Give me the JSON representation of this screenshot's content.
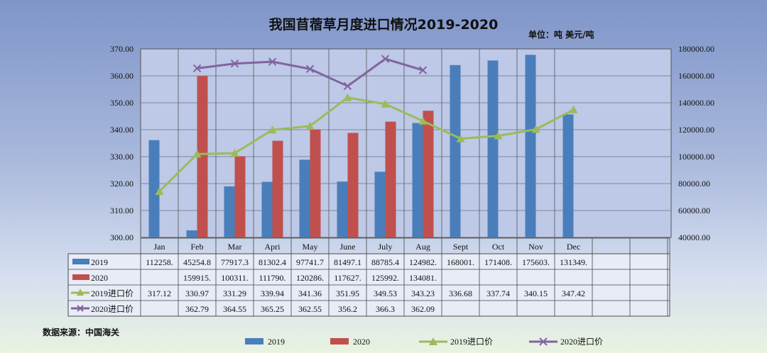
{
  "title": "我国苜蓿草月度进口情况2019-2020",
  "unit_label": "单位：吨  美元/吨",
  "source_label": "数据来源：中国海关",
  "colors": {
    "s2019": "#4a7ebb",
    "s2020": "#c0504d",
    "p2019": "#9bbb59",
    "p2020": "#8064a2"
  },
  "chart_data": {
    "type": "bar",
    "categories": [
      "Jan",
      "Feb",
      "Mar",
      "Apri",
      "May",
      "June",
      "July",
      "Aug",
      "Sept",
      "Oct",
      "Nov",
      "Dec"
    ],
    "left_axis": {
      "ylim": [
        300,
        370
      ],
      "ticks": [
        "300.00",
        "310.00",
        "320.00",
        "330.00",
        "340.00",
        "350.00",
        "360.00",
        "370.00"
      ]
    },
    "right_axis": {
      "ylim": [
        40000,
        180000
      ],
      "ticks": [
        "40000.00",
        "60000.00",
        "80000.00",
        "100000.00",
        "120000.00",
        "140000.00",
        "160000.00",
        "180000.00"
      ]
    },
    "series": [
      {
        "name": "2019",
        "kind": "bar",
        "axis": "right",
        "values": [
          112258,
          45254.8,
          77917.3,
          81302.4,
          97741.7,
          81497.1,
          88785.4,
          124982,
          168001,
          171408,
          175603,
          131349
        ],
        "table": [
          "112258.",
          "45254.8",
          "77917.3",
          "81302.4",
          "97741.7",
          "81497.1",
          "88785.4",
          "124982.",
          "168001.",
          "171408.",
          "175603.",
          "131349."
        ]
      },
      {
        "name": "2020",
        "kind": "bar",
        "axis": "right",
        "values": [
          null,
          159915,
          100311,
          111790,
          120286,
          117627,
          125992,
          134081,
          null,
          null,
          null,
          null
        ],
        "table": [
          "",
          "159915.",
          "100311.",
          "111790.",
          "120286.",
          "117627.",
          "125992.",
          "134081.",
          "",
          "",
          "",
          ""
        ]
      },
      {
        "name": "2019进口价",
        "kind": "line",
        "axis": "left",
        "values": [
          317.12,
          330.97,
          331.29,
          339.94,
          341.36,
          351.95,
          349.53,
          343.23,
          336.68,
          337.74,
          340.15,
          347.42
        ],
        "table": [
          "317.12",
          "330.97",
          "331.29",
          "339.94",
          "341.36",
          "351.95",
          "349.53",
          "343.23",
          "336.68",
          "337.74",
          "340.15",
          "347.42"
        ]
      },
      {
        "name": "2020进口价",
        "kind": "line",
        "axis": "left",
        "values": [
          null,
          362.79,
          364.55,
          365.25,
          362.55,
          356.2,
          366.3,
          362.09,
          null,
          null,
          null,
          null
        ],
        "table": [
          "",
          "362.79",
          "364.55",
          "365.25",
          "362.55",
          "356.2",
          "366.3",
          "362.09",
          "",
          "",
          "",
          ""
        ]
      }
    ],
    "grid": true,
    "legend": "bottom"
  }
}
